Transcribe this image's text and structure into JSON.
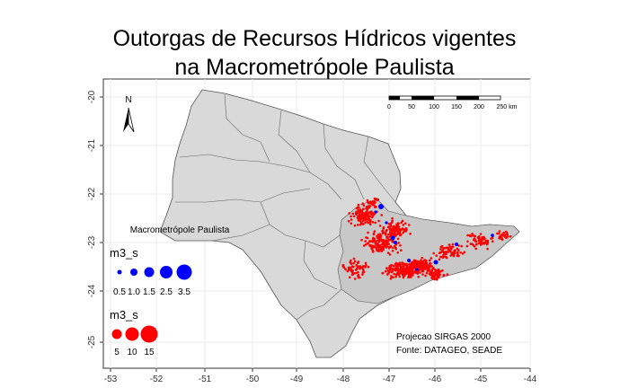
{
  "title_line1": "Outorgas de Recursos Hídricos vigentes",
  "title_line2": "na Macrometrópole Paulista",
  "map": {
    "x_ticks": [
      "-53",
      "-52",
      "-51",
      "-50",
      "-49",
      "-48",
      "-47",
      "-46",
      "-45",
      "-44"
    ],
    "y_ticks": [
      "-20",
      "-21",
      "-22",
      "-23",
      "-24",
      "-25"
    ],
    "region_label": "Macrometrópole Paulista",
    "north_label": "N",
    "scale_labels": [
      "0",
      "50",
      "100",
      "150",
      "200",
      "250 km"
    ],
    "projection_text": "Projecao SIRGAS 2000",
    "source_text": "Fonte: DATAGEO, SEADE",
    "state_fill": "#d9d9d9",
    "region_fill": "#c8c8c8",
    "background": "#ffffff",
    "grid_color": "#ebebeb"
  },
  "legend_blue": {
    "title": "m3_s",
    "color": "#0000ff",
    "values": [
      "0.5",
      "1.0",
      "1.5",
      "2.5",
      "3.5"
    ]
  },
  "legend_red": {
    "title": "m3_s",
    "color": "#ff0000",
    "values": [
      "5",
      "10",
      "15"
    ]
  }
}
